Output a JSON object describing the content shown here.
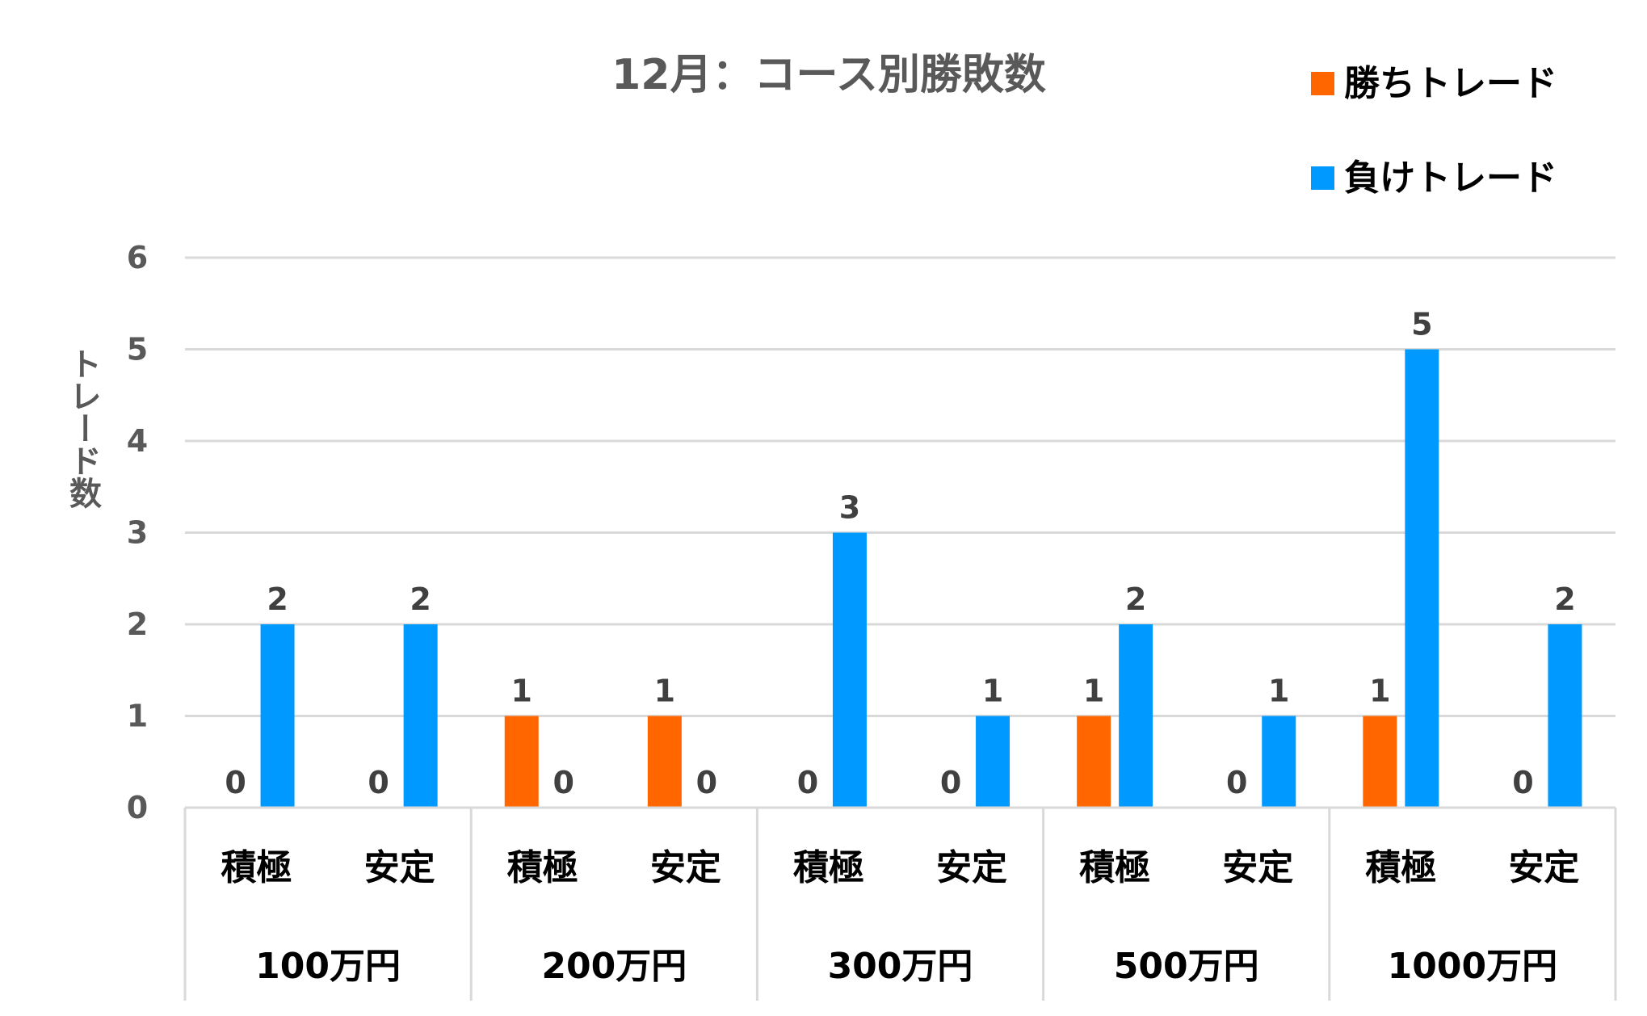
{
  "chart_data": {
    "type": "bar",
    "title": "12月：コース別勝敗数",
    "ylabel": "トレード数",
    "xlabel": "",
    "ylim": [
      0,
      6
    ],
    "yticks": [
      0,
      1,
      2,
      3,
      4,
      5,
      6
    ],
    "grid": true,
    "legend_position": "top-right",
    "groups": [
      "100万円",
      "200万円",
      "300万円",
      "500万円",
      "1000万円"
    ],
    "subcategories": [
      "積極",
      "安定"
    ],
    "categories": [
      "100万円 積極",
      "100万円 安定",
      "200万円 積極",
      "200万円 安定",
      "300万円 積極",
      "300万円 安定",
      "500万円 積極",
      "500万円 安定",
      "1000万円 積極",
      "1000万円 安定"
    ],
    "series": [
      {
        "name": "勝ちトレード",
        "color": "#FF6600",
        "values": [
          0,
          0,
          1,
          1,
          0,
          0,
          1,
          0,
          1,
          0
        ]
      },
      {
        "name": "負けトレード",
        "color": "#0099FF",
        "values": [
          2,
          2,
          0,
          0,
          3,
          1,
          2,
          1,
          5,
          2
        ]
      }
    ]
  }
}
